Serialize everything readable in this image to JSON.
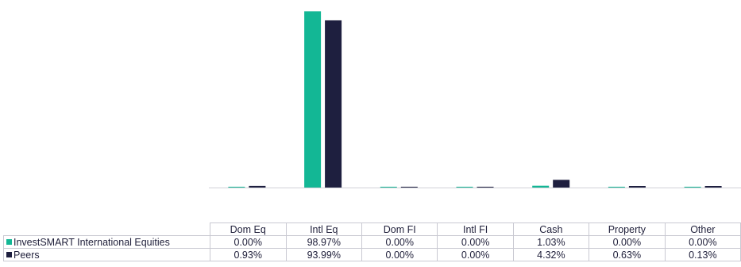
{
  "chart_data": {
    "type": "bar",
    "categories": [
      "Dom Eq",
      "Intl Eq",
      "Dom FI",
      "Intl FI",
      "Cash",
      "Property",
      "Other"
    ],
    "series": [
      {
        "name": "InvestSMART International Equities",
        "color": "#13b795",
        "values": [
          0.0,
          98.97,
          0.0,
          0.0,
          1.03,
          0.0,
          0.0
        ],
        "labels": [
          "0.00%",
          "98.97%",
          "0.00%",
          "0.00%",
          "1.03%",
          "0.00%",
          "0.00%"
        ]
      },
      {
        "name": "Peers",
        "color": "#1e1f3f",
        "values": [
          0.93,
          93.99,
          0.0,
          0.0,
          4.32,
          0.63,
          0.13
        ],
        "labels": [
          "0.93%",
          "93.99%",
          "0.00%",
          "0.00%",
          "4.32%",
          "0.63%",
          "0.13%"
        ]
      }
    ],
    "ylim": [
      0,
      100
    ],
    "grid": false,
    "legend": "data-table",
    "title": "",
    "xlabel": "",
    "ylabel": ""
  }
}
